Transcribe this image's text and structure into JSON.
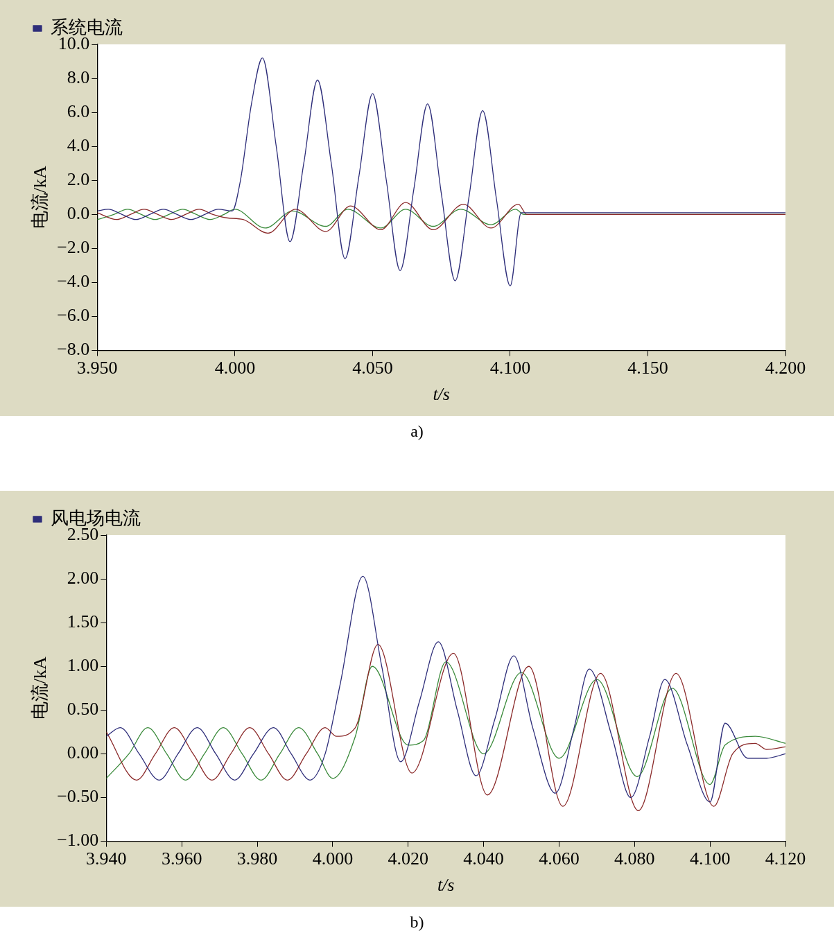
{
  "chart_data": [
    {
      "type": "line",
      "xlabel": "t/s",
      "ylabel": "电流/kA",
      "legend": "top left",
      "grid": false,
      "marker": "none",
      "line_style": "solid",
      "annotations": [
        "a)"
      ],
      "xlim": [
        3.95,
        4.2
      ],
      "xticks": [
        {
          "value": 3.95,
          "label": "3.950"
        },
        {
          "value": 4.0,
          "label": "4.000"
        },
        {
          "value": 4.05,
          "label": "4.050"
        },
        {
          "value": 4.1,
          "label": "4.100"
        },
        {
          "value": 4.15,
          "label": "4.150"
        },
        {
          "value": 4.2,
          "label": "4.200"
        }
      ],
      "ylim": [
        -8,
        10
      ],
      "yticks": [
        {
          "value": -8,
          "label": "−8.0"
        },
        {
          "value": -6,
          "label": "−6.0"
        },
        {
          "value": -4,
          "label": "−4.0"
        },
        {
          "value": -2,
          "label": "−2.0"
        },
        {
          "value": 0,
          "label": "0.0"
        },
        {
          "value": 2,
          "label": "2.0"
        },
        {
          "value": 4,
          "label": "4.0"
        },
        {
          "value": 6,
          "label": "6.0"
        },
        {
          "value": 8,
          "label": "8.0"
        },
        {
          "value": 10,
          "label": "10.0"
        }
      ],
      "series": [
        {
          "name": "系统电流",
          "color": "#2e2e7a",
          "x": [
            3.95,
            3.954,
            3.959,
            3.964,
            3.969,
            3.974,
            3.979,
            3.984,
            3.989,
            3.994,
            3.999,
            4.002,
            4.006,
            4.01,
            4.015,
            4.02,
            4.025,
            4.03,
            4.035,
            4.04,
            4.045,
            4.05,
            4.055,
            4.06,
            4.065,
            4.07,
            4.075,
            4.08,
            4.085,
            4.09,
            4.095,
            4.1,
            4.104,
            4.12,
            4.15,
            4.2
          ],
          "values": [
            0.2,
            0.3,
            0,
            -0.3,
            0,
            0.3,
            0,
            -0.3,
            0,
            0.3,
            0.2,
            2.0,
            6.5,
            9.2,
            4.0,
            -1.6,
            3.0,
            7.9,
            3.0,
            -2.6,
            2.2,
            7.1,
            2.0,
            -3.3,
            1.5,
            6.5,
            1.2,
            -3.9,
            1.0,
            6.1,
            0.9,
            -4.2,
            0.1,
            0.1,
            0.1,
            0.1
          ]
        },
        {
          "color": "#8b2a2a",
          "x": [
            3.95,
            3.957,
            3.962,
            3.967,
            3.972,
            3.977,
            3.982,
            3.987,
            3.992,
            3.997,
            4.003,
            4.012,
            4.022,
            4.033,
            4.042,
            4.053,
            4.062,
            4.072,
            4.083,
            4.093,
            4.103,
            4.106,
            4.15,
            4.2
          ],
          "values": [
            0.1,
            -0.3,
            0,
            0.3,
            0,
            -0.3,
            0,
            0.3,
            0,
            -0.2,
            -0.3,
            -1.1,
            0.3,
            -1.0,
            0.5,
            -0.9,
            0.7,
            -0.9,
            0.6,
            -0.8,
            0.6,
            0,
            0,
            0
          ]
        },
        {
          "color": "#3a8a3a",
          "x": [
            3.95,
            3.956,
            3.961,
            3.966,
            3.971,
            3.976,
            3.981,
            3.986,
            3.991,
            3.996,
            4.0,
            4.011,
            4.021,
            4.033,
            4.041,
            4.053,
            4.062,
            4.072,
            4.082,
            4.093,
            4.102,
            4.105,
            4.15,
            4.2
          ],
          "values": [
            -0.3,
            0,
            0.3,
            0,
            -0.3,
            0,
            0.3,
            0,
            -0.3,
            0,
            0.3,
            -0.8,
            0.2,
            -0.7,
            0.3,
            -0.8,
            0.3,
            -0.7,
            0.3,
            -0.6,
            0.3,
            0,
            0,
            0
          ]
        }
      ]
    },
    {
      "type": "line",
      "xlabel": "t/s",
      "ylabel": "电流/kA",
      "legend": "top left",
      "grid": false,
      "marker": "none",
      "line_style": "solid",
      "annotations": [
        "b)"
      ],
      "xlim": [
        3.94,
        4.12
      ],
      "xticks": [
        {
          "value": 3.94,
          "label": "3.940"
        },
        {
          "value": 3.96,
          "label": "3.960"
        },
        {
          "value": 3.98,
          "label": "3.980"
        },
        {
          "value": 4.0,
          "label": "4.000"
        },
        {
          "value": 4.02,
          "label": "4.020"
        },
        {
          "value": 4.04,
          "label": "4.040"
        },
        {
          "value": 4.06,
          "label": "4.060"
        },
        {
          "value": 4.08,
          "label": "4.080"
        },
        {
          "value": 4.1,
          "label": "4.100"
        },
        {
          "value": 4.12,
          "label": "4.120"
        }
      ],
      "ylim": [
        -1,
        2.5
      ],
      "yticks": [
        {
          "value": -1,
          "label": "−1.00"
        },
        {
          "value": -0.5,
          "label": "−0.50"
        },
        {
          "value": 0,
          "label": "0.00"
        },
        {
          "value": 0.5,
          "label": "0.50"
        },
        {
          "value": 1,
          "label": "1.00"
        },
        {
          "value": 1.5,
          "label": "1.50"
        },
        {
          "value": 2,
          "label": "2.00"
        },
        {
          "value": 2.5,
          "label": "2.50"
        }
      ],
      "series": [
        {
          "name": "风电场电流",
          "color": "#2e2e7a",
          "x": [
            3.94,
            3.9437,
            3.9487,
            3.954,
            3.959,
            3.9641,
            3.969,
            3.974,
            3.979,
            3.9843,
            3.989,
            3.994,
            3.998,
            4.002,
            4.008,
            4.013,
            4.018,
            4.023,
            4.028,
            4.033,
            4.038,
            4.043,
            4.048,
            4.053,
            4.059,
            4.064,
            4.068,
            4.074,
            4.079,
            4.084,
            4.088,
            4.094,
            4.1,
            4.104,
            4.11,
            4.115,
            4.12
          ],
          "values": [
            0.2,
            0.3,
            0,
            -0.3,
            0,
            0.3,
            0,
            -0.3,
            0,
            0.3,
            0,
            -0.3,
            0.0,
            0.8,
            2.03,
            1.0,
            -0.09,
            0.6,
            1.28,
            0.5,
            -0.25,
            0.4,
            1.12,
            0.3,
            -0.45,
            0.3,
            0.97,
            0.2,
            -0.5,
            0.2,
            0.85,
            0.1,
            -0.55,
            0.35,
            -0.05,
            -0.05,
            0.0
          ]
        },
        {
          "color": "#8b2a2a",
          "x": [
            3.94,
            3.948,
            3.953,
            3.958,
            3.963,
            3.968,
            3.973,
            3.978,
            3.983,
            3.988,
            3.993,
            3.998,
            4.001,
            4.006,
            4.012,
            4.021,
            4.032,
            4.041,
            4.052,
            4.061,
            4.071,
            4.081,
            4.091,
            4.101,
            4.106,
            4.112,
            4.115,
            4.12
          ],
          "values": [
            0.25,
            -0.3,
            0,
            0.3,
            0,
            -0.3,
            0,
            0.3,
            0,
            -0.3,
            0,
            0.3,
            0.2,
            0.3,
            1.25,
            -0.22,
            1.15,
            -0.47,
            1.0,
            -0.6,
            0.92,
            -0.65,
            0.92,
            -0.6,
            0.0,
            0.12,
            0.05,
            0.08
          ]
        },
        {
          "color": "#3a8a3a",
          "x": [
            3.94,
            3.946,
            3.951,
            3.956,
            3.961,
            3.966,
            3.971,
            3.976,
            3.981,
            3.986,
            3.991,
            3.996,
            4.0,
            4.006,
            4.0105,
            4.02,
            4.024,
            4.03,
            4.04,
            4.05,
            4.06,
            4.07,
            4.0807,
            4.09,
            4.1,
            4.104,
            4.112,
            4.12
          ],
          "values": [
            -0.28,
            0,
            0.3,
            0,
            -0.3,
            0,
            0.3,
            0,
            -0.3,
            0,
            0.3,
            0,
            -0.28,
            0.2,
            1.0,
            0.1,
            0.15,
            1.05,
            0.0,
            0.93,
            -0.05,
            0.85,
            -0.26,
            0.75,
            -0.35,
            0.1,
            0.2,
            0.12
          ]
        }
      ]
    }
  ]
}
